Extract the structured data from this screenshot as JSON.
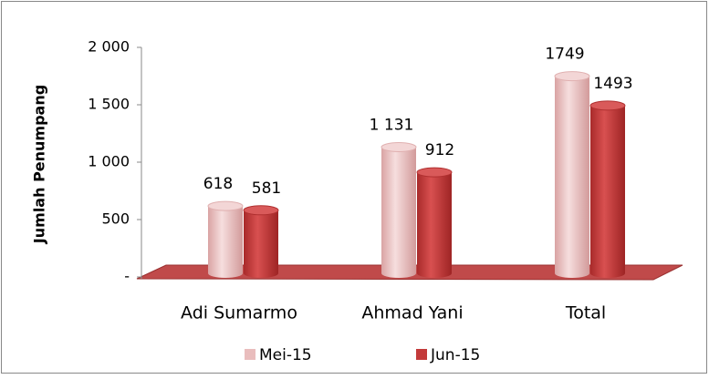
{
  "chart_data": {
    "type": "bar3d",
    "y_label": "Jumlah Penumpang",
    "categories": [
      "Adi Sumarmo",
      "Ahmad Yani",
      "Total"
    ],
    "series": [
      {
        "name": "Mei-15",
        "color": "#e9bdbd",
        "values": [
          618,
          1131,
          1749
        ],
        "value_labels": [
          "618",
          "1 131",
          "1749"
        ]
      },
      {
        "name": "Jun-15",
        "color": "#c33a3a",
        "values": [
          581,
          912,
          1493
        ],
        "value_labels": [
          "581",
          "912",
          "1493"
        ]
      }
    ],
    "ylim": [
      0,
      2000
    ],
    "yticks": [
      {
        "value": 0,
        "label": "-"
      },
      500,
      {
        "value": 1000,
        "label": "1 000"
      },
      {
        "value": 1500,
        "label": "1 500"
      },
      {
        "value": 2000,
        "label": "2 000"
      }
    ],
    "legend": "bottom"
  }
}
